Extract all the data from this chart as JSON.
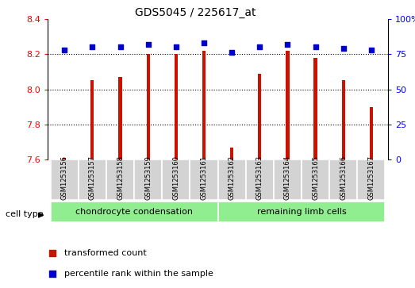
{
  "title": "GDS5045 / 225617_at",
  "samples": [
    "GSM1253156",
    "GSM1253157",
    "GSM1253158",
    "GSM1253159",
    "GSM1253160",
    "GSM1253161",
    "GSM1253162",
    "GSM1253163",
    "GSM1253164",
    "GSM1253165",
    "GSM1253166",
    "GSM1253167"
  ],
  "bar_values": [
    7.61,
    8.05,
    8.07,
    8.2,
    8.2,
    8.22,
    7.67,
    8.09,
    8.22,
    8.18,
    8.05,
    7.9
  ],
  "percentile_values": [
    78,
    80,
    80,
    82,
    80,
    83,
    76,
    80,
    82,
    80,
    79,
    78
  ],
  "bar_color": "#cc1100",
  "dot_color": "#0000cc",
  "ylim_left": [
    7.6,
    8.4
  ],
  "ylim_right": [
    0,
    100
  ],
  "yticks_left": [
    7.6,
    7.8,
    8.0,
    8.2,
    8.4
  ],
  "yticks_right": [
    0,
    25,
    50,
    75,
    100
  ],
  "grid_values": [
    7.8,
    8.0,
    8.2
  ],
  "cell_type_label": "cell type",
  "groups": [
    {
      "label": "chondrocyte condensation",
      "indices": [
        0,
        5
      ],
      "color": "#90ee90"
    },
    {
      "label": "remaining limb cells",
      "indices": [
        6,
        11
      ],
      "color": "#90ee90"
    }
  ],
  "legend_items": [
    {
      "label": "transformed count",
      "color": "#cc1100"
    },
    {
      "label": "percentile rank within the sample",
      "color": "#0000cc"
    }
  ],
  "bar_width": 0.12,
  "axis_label_fontsize": 8,
  "sample_fontsize": 6,
  "group_fontsize": 8,
  "legend_fontsize": 8,
  "title_fontsize": 10
}
